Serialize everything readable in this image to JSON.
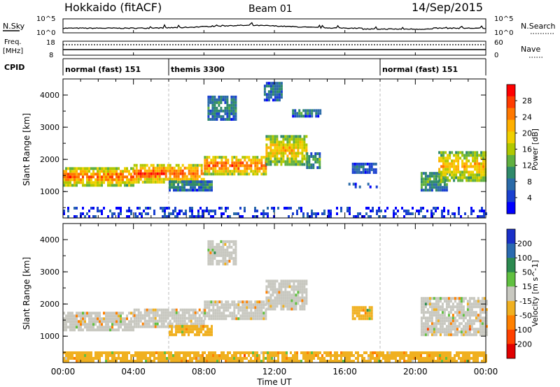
{
  "header": {
    "station": "Hokkaido (fitACF)",
    "beam": "Beam 01",
    "date": "14/Sep/2015"
  },
  "top_panels": {
    "nsky_label": "N.Sky",
    "nsky_ticks": [
      "10^5",
      "10^0"
    ],
    "nsearch_label": "N.Search",
    "nsearch_ticks": [
      "10^5",
      "10^0"
    ],
    "freq_label_1": "Freq.",
    "freq_label_2": "[MHz]",
    "freq_ticks": [
      "18",
      "8"
    ],
    "nave_label": "Nave",
    "nave_ticks": [
      "60",
      "0"
    ],
    "cpid_label": "CPID",
    "cpid_segments": [
      {
        "label": "normal (fast) 151",
        "start_h": 0,
        "end_h": 6
      },
      {
        "label": "themis 3300",
        "start_h": 6,
        "end_h": 18
      },
      {
        "label": "normal (fast) 151",
        "start_h": 18,
        "end_h": 24
      }
    ]
  },
  "chart_data": [
    {
      "type": "heatmap",
      "name": "power",
      "ylabel": "Slant Range [km]",
      "colorbar_label": "Power [dB]",
      "colorbar_ticks": [
        "28",
        "24",
        "20",
        "16",
        "12",
        "8",
        "4"
      ],
      "colorbar_colors": [
        "#ff0000",
        "#ff3c00",
        "#ff7800",
        "#ffb000",
        "#f0d000",
        "#b0c800",
        "#60b040",
        "#2f8a6a",
        "#2a6aa8",
        "#1a40d0",
        "#0000ff"
      ],
      "xlim": [
        0,
        24
      ],
      "ylim": [
        180,
        4500
      ],
      "yticks": [
        "4000",
        "3000",
        "2000",
        "1000"
      ],
      "regions": [
        {
          "t0": 0,
          "t1": 4,
          "r0": 1150,
          "r1": 1700,
          "level": 0.85
        },
        {
          "t0": 4,
          "t1": 8,
          "r0": 1250,
          "r1": 1800,
          "level": 0.9
        },
        {
          "t0": 8,
          "t1": 11.5,
          "r0": 1500,
          "r1": 2050,
          "level": 0.88
        },
        {
          "t0": 11.5,
          "t1": 13.8,
          "r0": 1800,
          "r1": 2700,
          "level": 0.7
        },
        {
          "t0": 13.8,
          "t1": 14.6,
          "r0": 1700,
          "r1": 2200,
          "level": 0.35
        },
        {
          "t0": 6,
          "t1": 8.5,
          "r0": 1000,
          "r1": 1300,
          "level": 0.3
        },
        {
          "t0": 8.2,
          "t1": 9.8,
          "r0": 3200,
          "r1": 3900,
          "level": 0.3
        },
        {
          "t0": 11.4,
          "t1": 12.4,
          "r0": 3800,
          "r1": 4400,
          "level": 0.25
        },
        {
          "t0": 13,
          "t1": 14.6,
          "r0": 3300,
          "r1": 3500,
          "level": 0.3
        },
        {
          "t0": 16.2,
          "t1": 17.8,
          "r0": 1100,
          "r1": 1250,
          "level": 0.15
        },
        {
          "t0": 16.4,
          "t1": 17.8,
          "r0": 1550,
          "r1": 1850,
          "level": 0.2
        },
        {
          "t0": 20.3,
          "t1": 21.8,
          "r0": 1000,
          "r1": 1600,
          "level": 0.4
        },
        {
          "t0": 21.3,
          "t1": 24,
          "r0": 1300,
          "r1": 2200,
          "level": 0.7
        },
        {
          "t0": 0,
          "t1": 24,
          "r0": 180,
          "r1": 450,
          "level": 0.1
        }
      ]
    },
    {
      "type": "heatmap",
      "name": "velocity",
      "ylabel": "Slant Range [km]",
      "xlabel": "Time UT",
      "colorbar_label": "Velocity [m s^-1]",
      "colorbar_ticks": [
        "200",
        "100",
        "50",
        "15",
        "-15",
        "-50",
        "-100",
        "-200"
      ],
      "colorbar_colors": [
        "#1a30c8",
        "#2a6ab0",
        "#2c8a50",
        "#60c040",
        "#c8c8c0",
        "#f0b020",
        "#ff8000",
        "#ff4000",
        "#e00000"
      ],
      "xlim": [
        0,
        24
      ],
      "ylim": [
        180,
        4500
      ],
      "yticks": [
        "4000",
        "3000",
        "2000",
        "1000"
      ],
      "xticks": [
        "00:00",
        "04:00",
        "08:00",
        "12:00",
        "16:00",
        "20:00",
        "00:00"
      ],
      "regions": [
        {
          "t0": 0,
          "t1": 4,
          "r0": 1150,
          "r1": 1700,
          "level": 0.5
        },
        {
          "t0": 4,
          "t1": 8,
          "r0": 1250,
          "r1": 1800,
          "level": 0.5
        },
        {
          "t0": 8,
          "t1": 11.5,
          "r0": 1500,
          "r1": 2050,
          "level": 0.5
        },
        {
          "t0": 11.5,
          "t1": 13.8,
          "r0": 1800,
          "r1": 2700,
          "level": 0.5
        },
        {
          "t0": 6,
          "t1": 8.5,
          "r0": 1000,
          "r1": 1300,
          "level": 0.6
        },
        {
          "t0": 8.2,
          "t1": 9.8,
          "r0": 3200,
          "r1": 3900,
          "level": 0.55
        },
        {
          "t0": 16.4,
          "t1": 17.5,
          "r0": 1500,
          "r1": 1850,
          "level": 0.65
        },
        {
          "t0": 20.3,
          "t1": 24,
          "r0": 1000,
          "r1": 2200,
          "level": 0.5
        },
        {
          "t0": 0,
          "t1": 24,
          "r0": 180,
          "r1": 450,
          "level": 0.62
        }
      ]
    }
  ]
}
